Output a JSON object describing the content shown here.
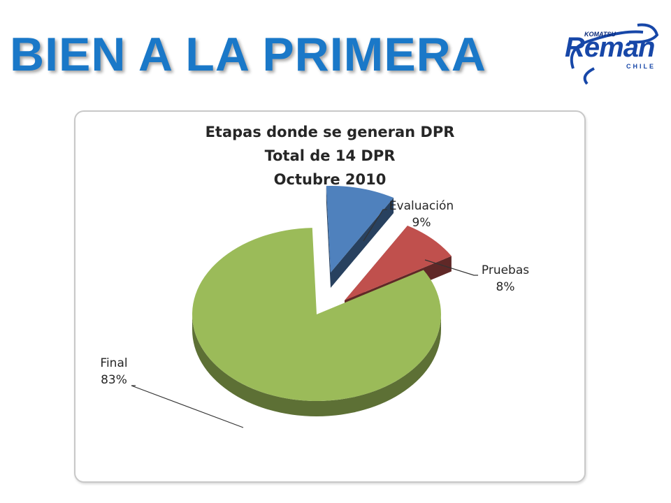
{
  "slide": {
    "title": "BIEN A LA PRIMERA",
    "title_color": "#1a78c8"
  },
  "logo": {
    "brand_small": "KOMATSU",
    "brand_main": "Reman",
    "brand_sub": "CHILE",
    "color": "#1747a8"
  },
  "chart_data": {
    "type": "pie",
    "title": [
      "Etapas donde se generan DPR",
      "Total de 14  DPR",
      "Octubre 2010"
    ],
    "slices": [
      {
        "label": "Evaluación",
        "value": 9,
        "value_label": "9%",
        "color": "#4f81bd",
        "exploded": true
      },
      {
        "label": "Pruebas",
        "value": 8,
        "value_label": "8%",
        "color": "#c0504d",
        "exploded": true
      },
      {
        "label": "Final",
        "value": 83,
        "value_label": "83%",
        "color": "#9bbb59",
        "exploded": false
      }
    ],
    "style": "3d-exploded",
    "legend": "none"
  }
}
